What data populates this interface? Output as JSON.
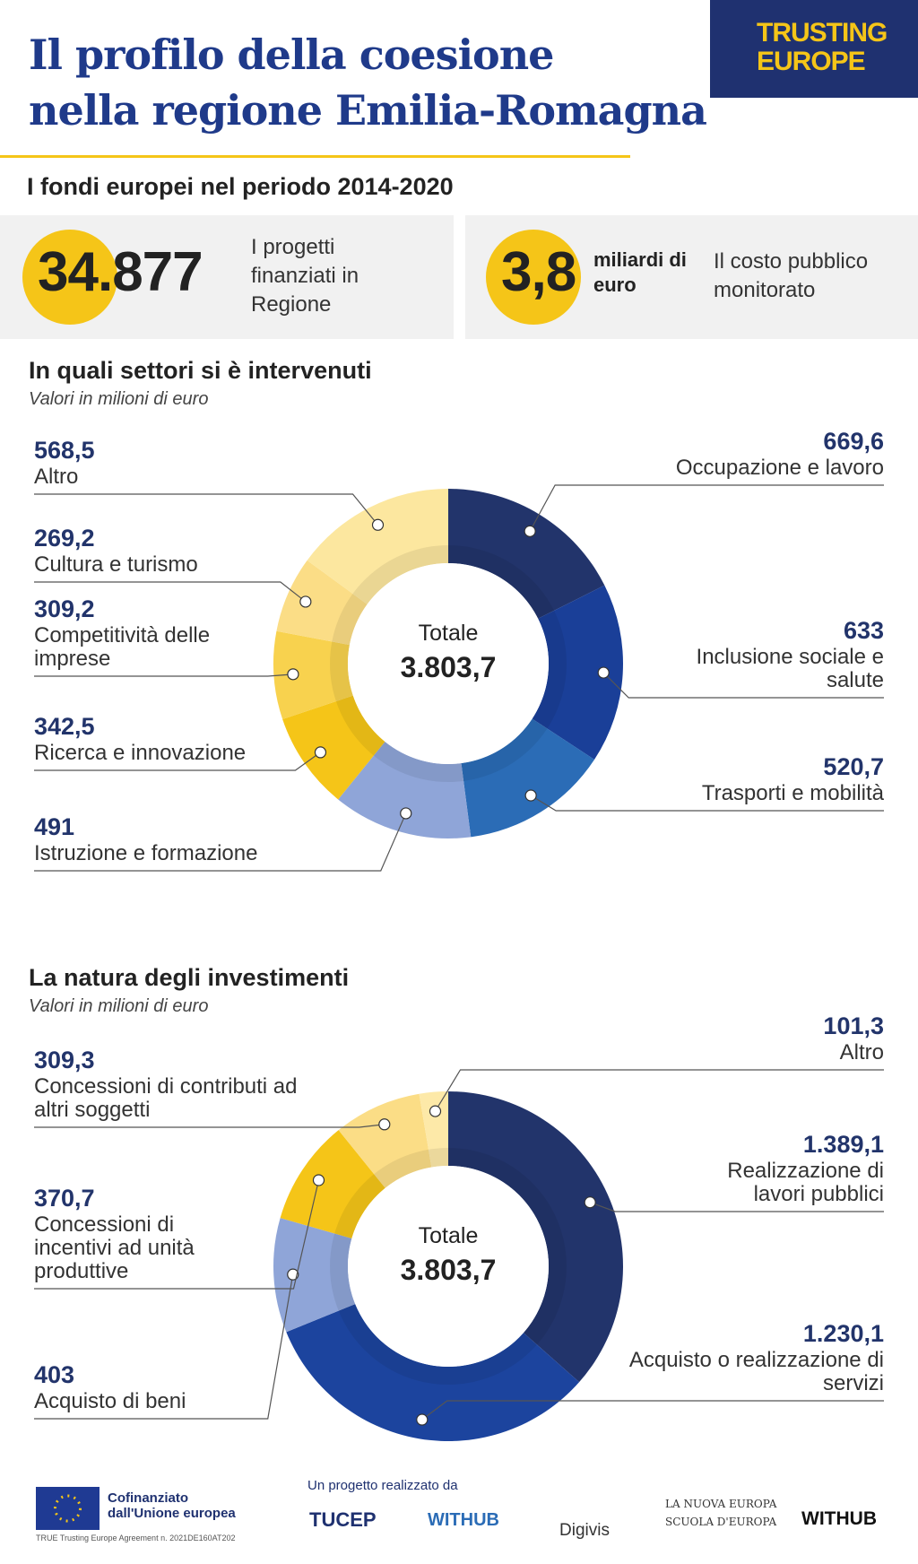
{
  "header": {
    "title_lines": [
      "Il profilo della coesione",
      "nella regione Emilia-Romagna"
    ],
    "logo_lines": [
      "TRUSTING",
      "EUROPE"
    ],
    "subtitle": "I fondi europei nel periodo 2014-2020"
  },
  "stats": [
    {
      "value": "34.877",
      "label": "I progetti finanziati in Regione"
    },
    {
      "value": "3,8",
      "unit": "miliardi di euro",
      "label": "Il costo pubblico monitorato"
    }
  ],
  "chart_data": [
    {
      "type": "donut",
      "title": "In quali settori si è intervenuti",
      "subtitle": "Valori in milioni di euro",
      "center_label": "Totale",
      "center_value": "3.803,7",
      "categories": [
        "Occupazione e lavoro",
        "Inclusione sociale e salute",
        "Trasporti e mobilità",
        "Istruzione e formazione",
        "Ricerca e innovazione",
        "Competitività delle imprese",
        "Cultura e turismo",
        "Altro"
      ],
      "values": [
        669.6,
        633,
        520.7,
        491,
        342.5,
        309.2,
        269.2,
        568.5
      ],
      "value_labels": [
        "669,6",
        "633",
        "520,7",
        "491",
        "342,5",
        "309,2",
        "269,2",
        "568,5"
      ],
      "colors": [
        "#22346b",
        "#1a3f98",
        "#2b6cb6",
        "#8fa5d8",
        "#f5c518",
        "#f8d24e",
        "#fbdd86",
        "#fce79f"
      ]
    },
    {
      "type": "donut",
      "title": "La natura degli investimenti",
      "subtitle": "Valori in milioni di euro",
      "center_label": "Totale",
      "center_value": "3.803,7",
      "categories": [
        "Realizzazione di lavori pubblici",
        "Acquisto o realizzazione di servizi",
        "Acquisto di beni",
        "Concessioni di incentivi ad unità produttive",
        "Concessioni di contributi ad altri soggetti",
        "Altro"
      ],
      "values": [
        1389.1,
        1230.1,
        403,
        370.7,
        309.3,
        101.3
      ],
      "value_labels": [
        "1.389,1",
        "1.230,1",
        "403",
        "370,7",
        "309,3",
        "101,3"
      ],
      "colors": [
        "#22346b",
        "#1c449e",
        "#8fa5d8",
        "#f5c518",
        "#fbdd86",
        "#fde9a8"
      ]
    }
  ],
  "footer": {
    "eu": "Cofinanziato dall'Unione europea",
    "agreement": "TRUE Trusting Europe Agreement n. 2021DE160AT202",
    "by": "Un progetto realizzato da",
    "partners": [
      "TUCEP",
      "WITHUB",
      "Digivis",
      "LA NUOVA EUROPA",
      "SCUOLA D'EUROPA",
      "WITHUB"
    ]
  }
}
